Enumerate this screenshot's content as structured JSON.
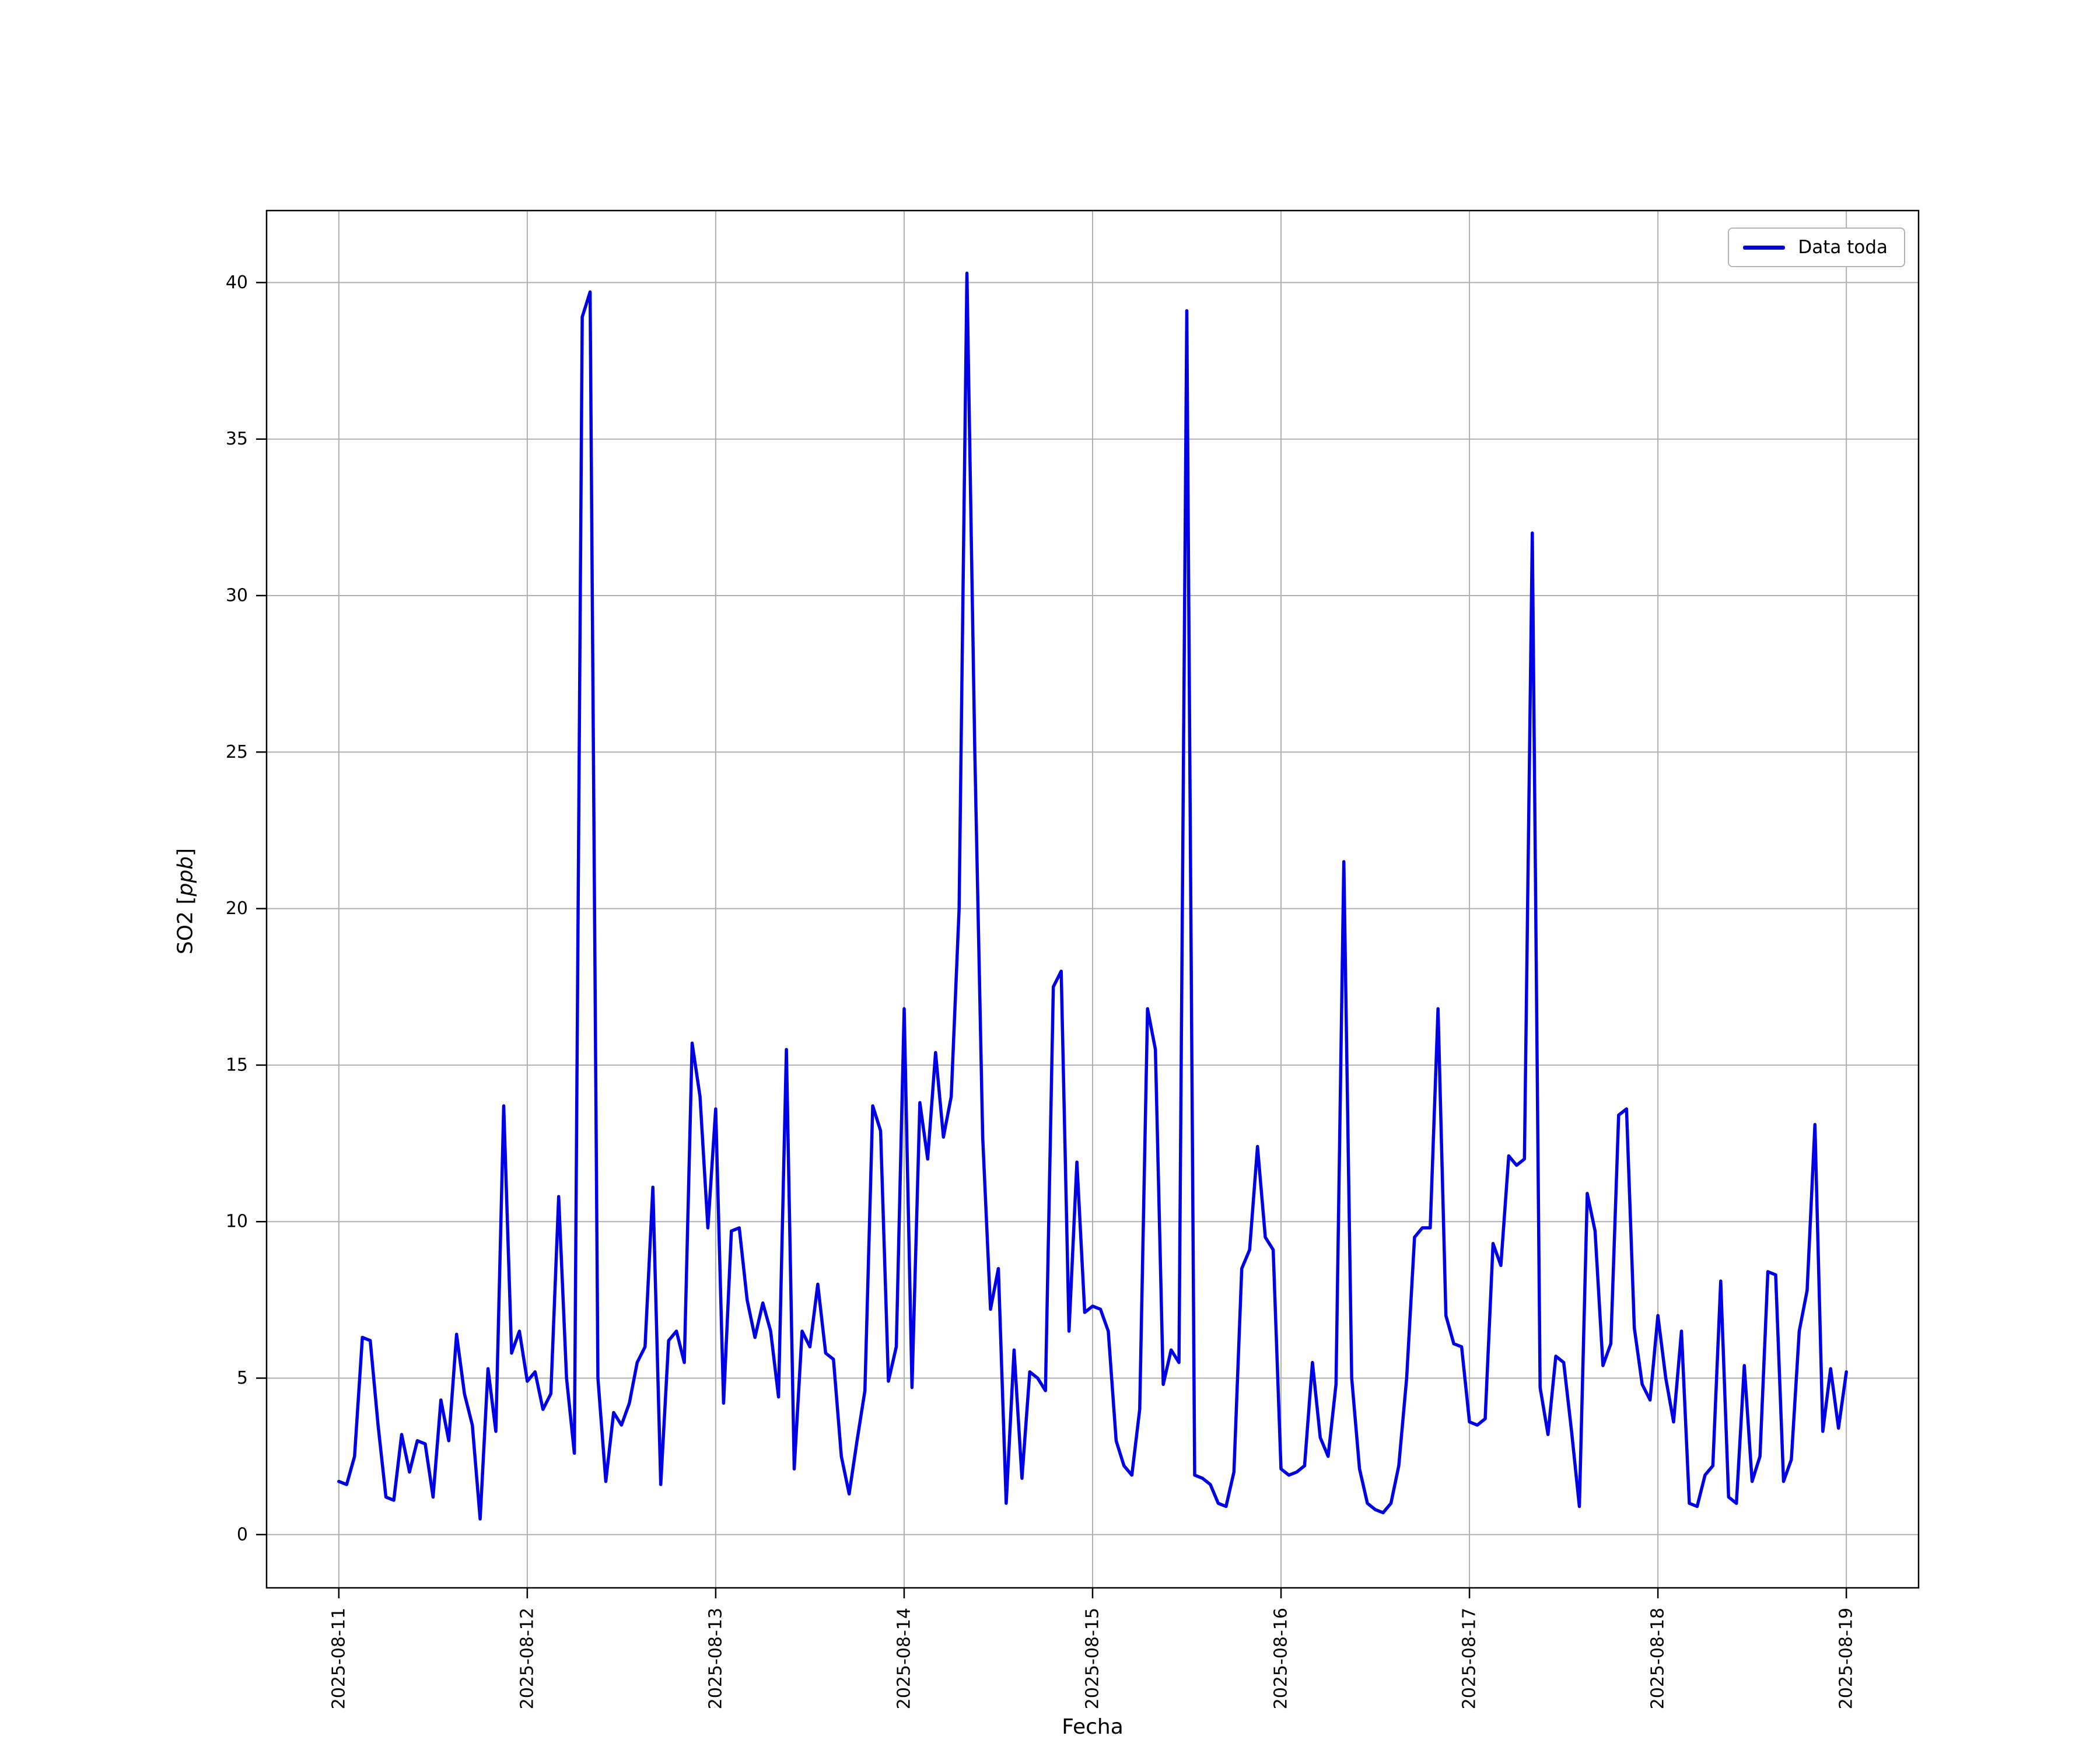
{
  "figure": {
    "background": "#ffffff"
  },
  "chart_data": {
    "type": "line",
    "title": "",
    "xlabel": "Fecha",
    "ylabel": "SO2 [ppb]",
    "ylabel_parts": [
      "SO2 [",
      "ppb",
      "]"
    ],
    "grid": true,
    "grid_color": "#b0b0b0",
    "line_color": "#0000e6",
    "legend": {
      "position": "upper right",
      "entries": [
        {
          "label": "Data toda",
          "color": "#0000e6"
        }
      ]
    },
    "x_tick_labels": [
      "2025-08-11",
      "2025-08-12",
      "2025-08-13",
      "2025-08-14",
      "2025-08-15",
      "2025-08-16",
      "2025-08-17",
      "2025-08-18",
      "2025-08-19"
    ],
    "y_ticks": [
      0,
      5,
      10,
      15,
      20,
      25,
      30,
      35,
      40
    ],
    "ylim": [
      -1.7,
      42.3
    ],
    "x_start": "2025-08-11 00:00",
    "x_end": "2025-08-19 00:00",
    "x_step_hours": 1,
    "series": [
      {
        "name": "Data toda",
        "values": [
          1.7,
          1.6,
          2.5,
          6.3,
          6.2,
          3.5,
          1.2,
          1.1,
          3.2,
          2.0,
          3.0,
          2.9,
          1.2,
          4.3,
          3.0,
          6.4,
          4.5,
          3.5,
          0.5,
          5.3,
          3.3,
          13.7,
          5.8,
          6.5,
          4.9,
          5.2,
          4.0,
          4.5,
          10.8,
          5.0,
          2.6,
          38.9,
          39.7,
          5.0,
          1.7,
          3.9,
          3.5,
          4.2,
          5.5,
          6.0,
          11.1,
          1.6,
          6.2,
          6.5,
          5.5,
          15.7,
          14.0,
          9.8,
          13.6,
          4.2,
          9.7,
          9.8,
          7.5,
          6.3,
          7.4,
          6.5,
          4.4,
          15.5,
          2.1,
          6.5,
          6.0,
          8.0,
          5.8,
          5.6,
          2.5,
          1.3,
          3.0,
          4.6,
          13.7,
          12.9,
          4.9,
          6.0,
          16.8,
          4.7,
          13.8,
          12.0,
          15.4,
          12.7,
          14.0,
          20.0,
          40.3,
          25.0,
          12.7,
          7.2,
          8.5,
          1.0,
          5.9,
          1.8,
          5.2,
          5.0,
          4.6,
          17.5,
          18.0,
          6.5,
          11.9,
          7.1,
          7.3,
          7.2,
          6.5,
          3.0,
          2.2,
          1.9,
          4.0,
          16.8,
          15.5,
          4.8,
          5.9,
          5.5,
          39.1,
          1.9,
          1.8,
          1.6,
          1.0,
          0.9,
          2.0,
          8.5,
          9.1,
          12.4,
          9.5,
          9.1,
          2.1,
          1.9,
          2.0,
          2.2,
          5.5,
          3.1,
          2.5,
          4.8,
          21.5,
          5.0,
          2.1,
          1.0,
          0.8,
          0.7,
          1.0,
          2.2,
          5.0,
          9.5,
          9.8,
          9.8,
          16.8,
          7.0,
          6.1,
          6.0,
          3.6,
          3.5,
          3.7,
          9.3,
          8.6,
          12.1,
          11.8,
          12.0,
          32.0,
          4.7,
          3.2,
          5.7,
          5.5,
          3.3,
          0.9,
          10.9,
          9.7,
          5.4,
          6.1,
          13.4,
          13.6,
          6.6,
          4.8,
          4.3,
          7.0,
          5.0,
          3.6,
          6.5,
          1.0,
          0.9,
          1.9,
          2.2,
          8.1,
          1.2,
          1.0,
          5.4,
          1.7,
          2.5,
          8.4,
          8.3,
          1.7,
          2.4,
          6.5,
          7.8,
          13.1,
          3.3,
          5.3,
          3.4,
          5.2
        ]
      }
    ]
  }
}
